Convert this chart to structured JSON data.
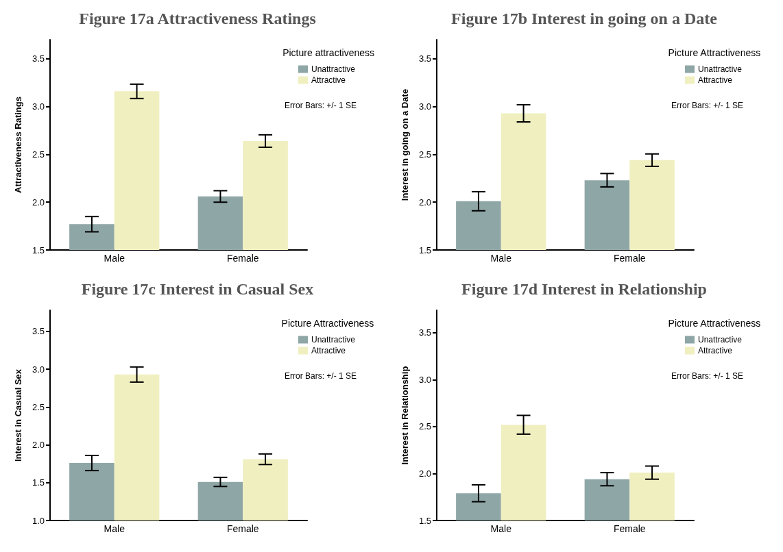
{
  "chart_data": [
    {
      "type": "bar",
      "title": "Figure 17a Attractiveness Ratings",
      "ylabel": "Attractiveness Ratings",
      "legend_title": "Picture attractiveness",
      "annotations": [
        "Error Bars: +/- 1 SE"
      ],
      "categories": [
        "Male",
        "Female"
      ],
      "series": [
        {
          "name": "Unattractive",
          "color": "#8fa6a6",
          "values": [
            1.77,
            2.06
          ],
          "errors": [
            0.08,
            0.06
          ]
        },
        {
          "name": "Attractive",
          "color": "#f0efc0",
          "values": [
            3.16,
            2.64
          ],
          "errors": [
            0.075,
            0.065
          ]
        }
      ],
      "ylim": [
        1.5,
        3.7
      ],
      "yticks": [
        1.5,
        {
          "value": 2,
          "label": "2.0"
        },
        2.5,
        {
          "value": 3,
          "label": "3.0"
        },
        3.5
      ],
      "grid": false,
      "legend": "top right"
    },
    {
      "type": "bar",
      "title": "Figure 17b Interest in going on a Date",
      "ylabel": "Interest in going on a Date",
      "legend_title": "Picture Attractiveness",
      "annotations": [
        "Error Bars: +/- 1 SE"
      ],
      "categories": [
        "Male",
        "Female"
      ],
      "series": [
        {
          "name": "Unattractive",
          "color": "#8fa6a6",
          "values": [
            2.01,
            2.23
          ],
          "errors": [
            0.1,
            0.07
          ]
        },
        {
          "name": "Attractive",
          "color": "#f0efc0",
          "values": [
            2.93,
            2.44
          ],
          "errors": [
            0.09,
            0.065
          ]
        }
      ],
      "ylim": [
        1.5,
        3.7
      ],
      "yticks": [
        1.5,
        {
          "value": 2,
          "label": "2.0"
        },
        2.5,
        {
          "value": 3,
          "label": "3.0"
        },
        3.5
      ],
      "grid": false,
      "legend": "top right"
    },
    {
      "type": "bar",
      "title": "Figure 17c Interest in Casual Sex",
      "ylabel": "Interest in Casual Sex",
      "legend_title": "Picture Attractiveness",
      "annotations": [
        "Error Bars: +/- 1 SE"
      ],
      "categories": [
        "Male",
        "Female"
      ],
      "series": [
        {
          "name": "Unattractive",
          "color": "#8fa6a6",
          "values": [
            1.76,
            1.51
          ],
          "errors": [
            0.1,
            0.06
          ]
        },
        {
          "name": "Attractive",
          "color": "#f0efc0",
          "values": [
            2.93,
            1.81
          ],
          "errors": [
            0.1,
            0.07
          ]
        }
      ],
      "ylim": [
        1.0,
        3.78
      ],
      "yticks": [
        {
          "value": 1,
          "label": "1.0"
        },
        1.5,
        {
          "value": 2,
          "label": "2.0"
        },
        2.5,
        {
          "value": 3,
          "label": "3.0"
        },
        3.5
      ],
      "grid": false,
      "legend": "top right"
    },
    {
      "type": "bar",
      "title": "Figure 17d Interest in Relationship",
      "ylabel": "Interest in Relationship",
      "legend_title": "Picture Attractiveness",
      "annotations": [
        "Error Bars: +/- 1 SE"
      ],
      "categories": [
        "Male",
        "Female"
      ],
      "series": [
        {
          "name": "Unattractive",
          "color": "#8fa6a6",
          "values": [
            1.79,
            1.94
          ],
          "errors": [
            0.09,
            0.07
          ]
        },
        {
          "name": "Attractive",
          "color": "#f0efc0",
          "values": [
            2.52,
            2.01
          ],
          "errors": [
            0.1,
            0.07
          ]
        }
      ],
      "ylim": [
        1.5,
        3.74
      ],
      "yticks": [
        1.5,
        {
          "value": 2,
          "label": "2.0"
        },
        2.5,
        {
          "value": 3,
          "label": "3.0"
        },
        3.5
      ],
      "grid": false,
      "legend": "top right"
    }
  ]
}
